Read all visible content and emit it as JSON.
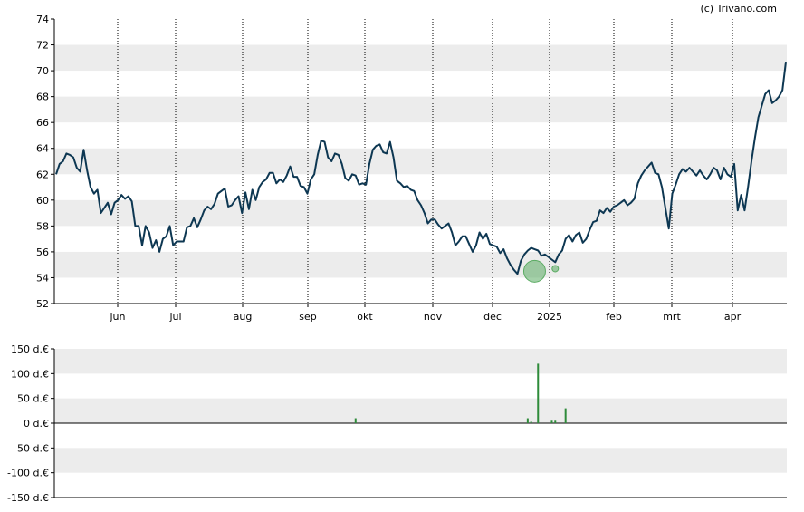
{
  "credit": "(c) Trivano.com",
  "colors": {
    "line": "#0d3752",
    "band": "#ececec",
    "axis": "#000000",
    "grid_dotted": "#000000",
    "bubble": "#5aab62",
    "bar": "#2e8b3a"
  },
  "chart_data": [
    {
      "type": "line",
      "title": "",
      "xlabel": "",
      "ylabel": "",
      "ylim": [
        52,
        74
      ],
      "y_ticks": [
        "52",
        "54",
        "56",
        "58",
        "60",
        "62",
        "64",
        "66",
        "68",
        "70",
        "72",
        "74"
      ],
      "x_ticks": [
        "jun",
        "jul",
        "aug",
        "sep",
        "okt",
        "nov",
        "dec",
        "2025",
        "feb",
        "mrt",
        "apr"
      ],
      "grid": "horizontal bands + dotted vertical month lines",
      "series": [
        {
          "values": [
            62.0,
            62.8,
            63.0,
            63.6,
            63.5,
            63.3,
            62.5,
            62.2,
            63.9,
            62.3,
            61.0,
            60.5,
            60.8,
            59.0,
            59.4,
            59.8,
            58.9,
            59.8,
            60.0,
            60.4,
            60.1,
            60.3,
            59.9,
            58.0,
            58.0,
            56.5,
            58.0,
            57.5,
            56.3,
            56.9,
            56.0,
            57.0,
            57.2,
            58.0,
            56.5,
            56.8,
            56.8,
            56.8,
            57.9,
            58.0,
            58.6,
            57.9,
            58.5,
            59.2,
            59.5,
            59.3,
            59.7,
            60.5,
            60.7,
            60.9,
            59.5,
            59.6,
            60.0,
            60.3,
            59.0,
            60.6,
            59.3,
            60.8,
            60.0,
            61.0,
            61.4,
            61.6,
            62.1,
            62.1,
            61.3,
            61.6,
            61.4,
            61.9,
            62.6,
            61.8,
            61.8,
            61.1,
            61.0,
            60.5,
            61.6,
            62.0,
            63.5,
            64.6,
            64.5,
            63.3,
            63.0,
            63.6,
            63.5,
            62.8,
            61.7,
            61.5,
            62.0,
            61.9,
            61.2,
            61.3,
            61.2,
            62.8,
            63.9,
            64.2,
            64.3,
            63.7,
            63.6,
            64.5,
            63.3,
            61.5,
            61.3,
            61.0,
            61.1,
            60.8,
            60.7,
            60.0,
            59.6,
            59.0,
            58.2,
            58.5,
            58.5,
            58.1,
            57.8,
            58.0,
            58.2,
            57.5,
            56.5,
            56.8,
            57.2,
            57.2,
            56.6,
            56.0,
            56.5,
            57.5,
            57.0,
            57.4,
            56.6,
            56.5,
            56.4,
            55.9,
            56.2,
            55.5,
            55.0,
            54.6,
            54.3,
            55.3,
            55.8,
            56.1,
            56.3,
            56.2,
            56.1,
            55.7,
            55.8,
            55.6,
            55.4,
            55.2,
            55.8,
            56.1,
            57.0,
            57.3,
            56.8,
            57.3,
            57.5,
            56.7,
            57.0,
            57.7,
            58.3,
            58.4,
            59.2,
            59.0,
            59.4,
            59.1,
            59.5,
            59.6,
            59.8,
            60.0,
            59.6,
            59.8,
            60.1,
            61.3,
            61.9,
            62.3,
            62.6,
            62.9,
            62.1,
            62.0,
            61.0,
            59.4,
            57.8,
            60.5,
            61.2,
            62.0,
            62.4,
            62.2,
            62.5,
            62.2,
            61.9,
            62.3,
            61.9,
            61.6,
            62.0,
            62.5,
            62.3,
            61.6,
            62.5,
            62.0,
            61.8,
            62.8,
            59.2,
            60.4,
            59.2,
            61.0,
            63.0,
            64.8,
            66.4,
            67.3,
            68.2,
            68.5,
            67.5,
            67.7,
            68.0,
            68.5,
            70.7
          ]
        }
      ],
      "annotations": [
        {
          "kind": "bubble",
          "x_index": 139,
          "y": 54.5,
          "size": "large"
        },
        {
          "kind": "bubble",
          "x_index": 145,
          "y": 54.7,
          "size": "small"
        }
      ]
    },
    {
      "type": "bar",
      "title": "",
      "xlabel": "",
      "ylabel": "",
      "ylim": [
        -150,
        150
      ],
      "y_ticks": [
        "-150 d.€",
        "-100 d.€",
        "-50 d.€",
        "0 d.€",
        "50 d.€",
        "100 d.€",
        "150 d.€"
      ],
      "bars": [
        {
          "x_index": 87,
          "value": 10
        },
        {
          "x_index": 137,
          "value": 10
        },
        {
          "x_index": 138,
          "value": 3
        },
        {
          "x_index": 140,
          "value": 120
        },
        {
          "x_index": 144,
          "value": 5
        },
        {
          "x_index": 145,
          "value": 5
        },
        {
          "x_index": 148,
          "value": 30
        }
      ]
    }
  ]
}
